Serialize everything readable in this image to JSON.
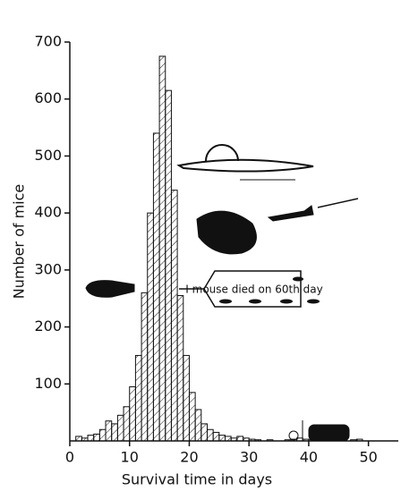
{
  "chart_data": {
    "type": "histogram",
    "xlabel": "Survival time in days",
    "ylabel": "Number of mice",
    "annotation": "I mouse died on 60th day",
    "bins": [
      1,
      2,
      3,
      4,
      5,
      6,
      7,
      8,
      9,
      10,
      11,
      12,
      13,
      14,
      15,
      16,
      17,
      18,
      19,
      20,
      21,
      22,
      23,
      24,
      25,
      26,
      27,
      28,
      29,
      30,
      31,
      32,
      33,
      34,
      35,
      36,
      37,
      38,
      39,
      40,
      41,
      42,
      43,
      44,
      45,
      46,
      47,
      48,
      49,
      50
    ],
    "values": [
      8,
      5,
      10,
      12,
      20,
      35,
      30,
      45,
      60,
      95,
      150,
      260,
      400,
      540,
      675,
      615,
      440,
      255,
      150,
      85,
      55,
      30,
      20,
      15,
      10,
      8,
      5,
      8,
      5,
      3,
      2,
      0,
      2,
      0,
      0,
      2,
      3,
      5,
      3,
      2,
      0,
      0,
      0,
      0,
      0,
      0,
      2,
      3,
      0
    ],
    "color": "#111111",
    "xlim": [
      0,
      55
    ],
    "xticks": [
      0,
      10,
      20,
      30,
      40,
      50
    ],
    "ylim": [
      0,
      700
    ],
    "yticks": [
      100,
      200,
      300,
      400,
      500,
      600,
      700
    ]
  }
}
